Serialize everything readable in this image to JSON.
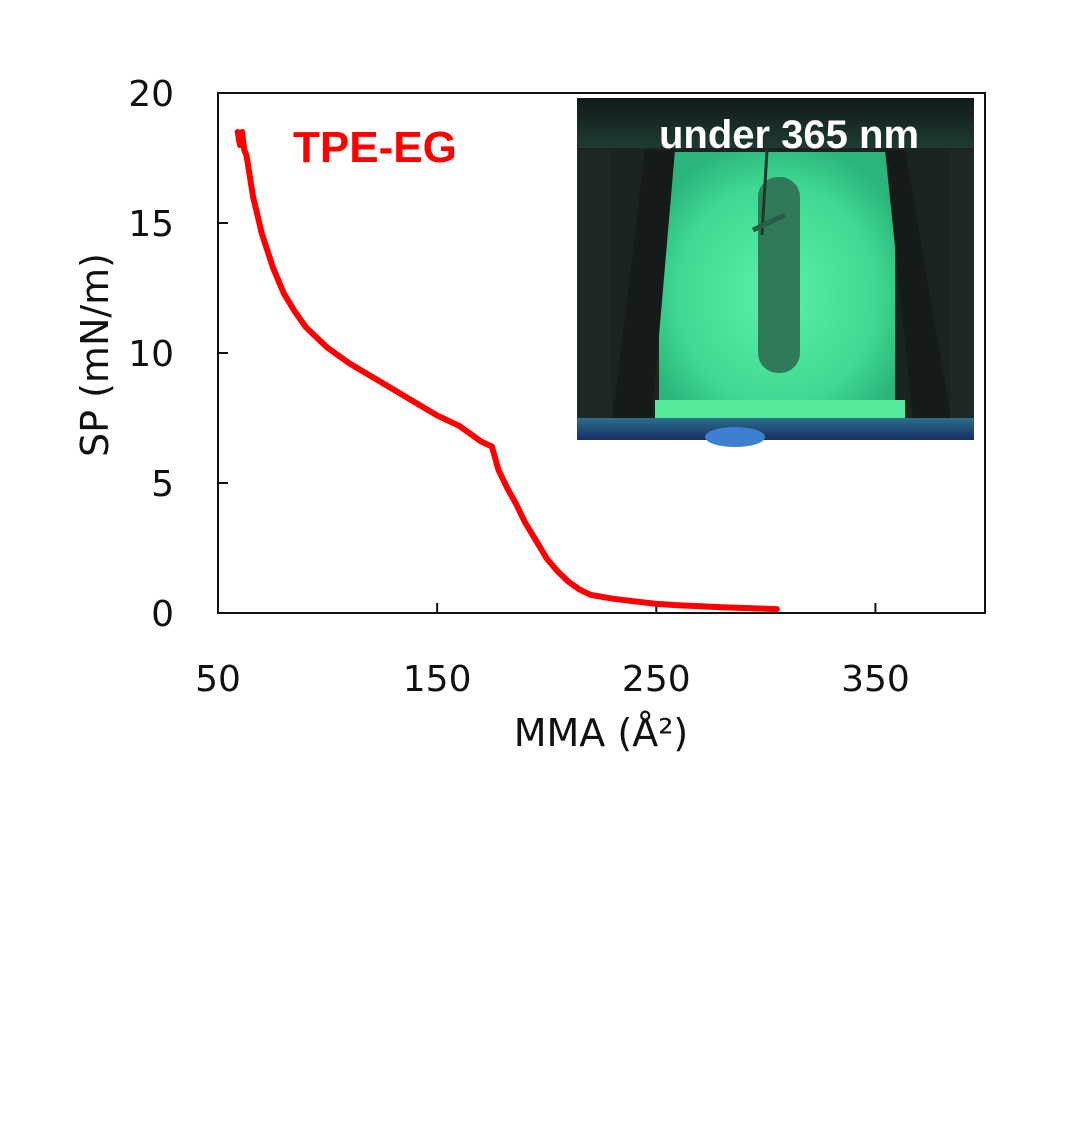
{
  "chart_data": {
    "type": "line",
    "title": "",
    "xlabel": "MMA (Å²)",
    "ylabel": "SP (mN/m)",
    "xlim": [
      50,
      400
    ],
    "ylim": [
      0,
      20
    ],
    "xticks": [
      "50",
      "150",
      "250",
      "350"
    ],
    "yticks": [
      "0",
      "5",
      "10",
      "15",
      "20"
    ],
    "grid": false,
    "series": [
      {
        "name": "TPE-EG",
        "color": "#ff0000",
        "x": [
          59,
          60,
          61,
          62,
          63,
          66,
          70,
          75,
          80,
          85,
          90,
          95,
          100,
          110,
          120,
          130,
          140,
          150,
          160,
          170,
          175,
          178,
          182,
          186,
          190,
          195,
          200,
          205,
          210,
          215,
          220,
          230,
          240,
          250,
          260,
          280,
          305
        ],
        "y": [
          18.5,
          18.0,
          18.5,
          17.8,
          17.6,
          16.0,
          14.6,
          13.3,
          12.3,
          11.6,
          11.0,
          10.6,
          10.2,
          9.6,
          9.1,
          8.6,
          8.1,
          7.6,
          7.2,
          6.6,
          6.4,
          5.5,
          4.8,
          4.2,
          3.5,
          2.8,
          2.1,
          1.6,
          1.2,
          0.9,
          0.7,
          0.55,
          0.45,
          0.35,
          0.3,
          0.22,
          0.15
        ]
      }
    ],
    "annotations": [
      "TPE-EG"
    ],
    "inset_caption": "under 365 nm"
  }
}
